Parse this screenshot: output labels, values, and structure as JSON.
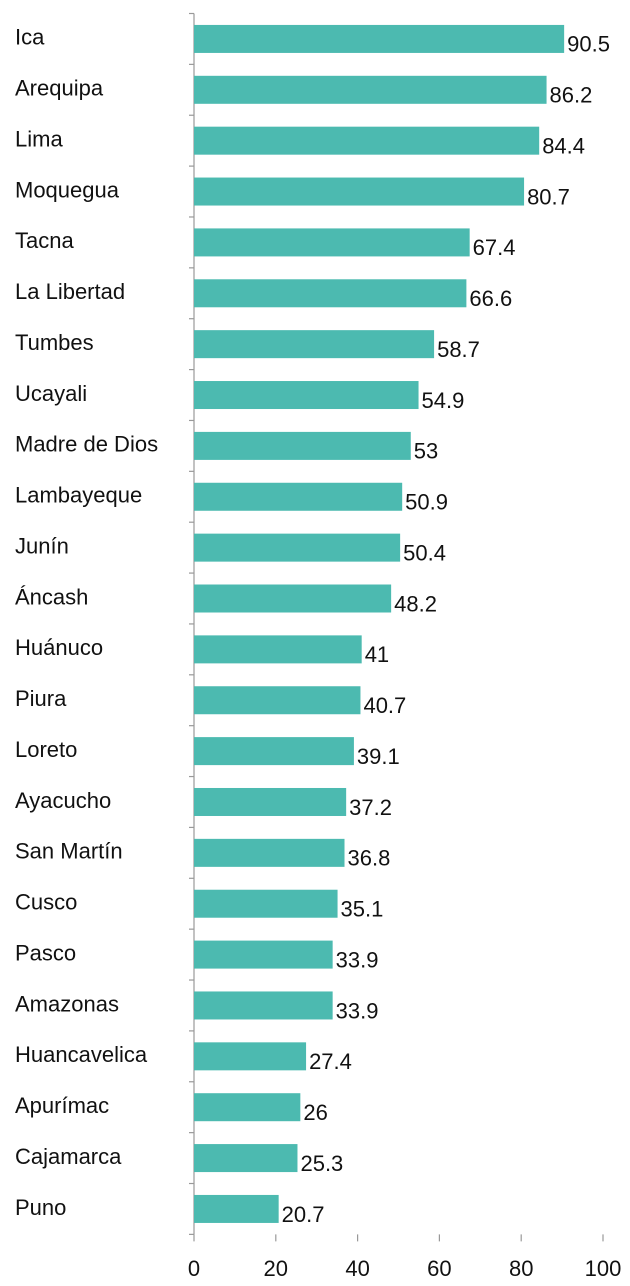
{
  "chart_data": {
    "type": "barh",
    "categories": [
      "Ica",
      "Arequipa",
      "Lima",
      "Moquegua",
      "Tacna",
      "La Libertad",
      "Tumbes",
      "Ucayali",
      "Madre de Dios",
      "Lambayeque",
      "Junín",
      "Áncash",
      "Huánuco",
      "Piura",
      "Loreto",
      "Ayacucho",
      "San Martín",
      "Cusco",
      "Pasco",
      "Amazonas",
      "Huancavelica",
      "Apurímac",
      "Cajamarca",
      "Puno"
    ],
    "values": [
      90.5,
      86.2,
      84.4,
      80.7,
      67.4,
      66.6,
      58.7,
      54.9,
      53,
      50.9,
      50.4,
      48.2,
      41,
      40.7,
      39.1,
      37.2,
      36.8,
      35.1,
      33.9,
      33.9,
      27.4,
      26,
      25.3,
      20.7
    ],
    "color": "#4cbab0",
    "xlim": [
      0,
      100
    ],
    "xticks": [
      0,
      20,
      40,
      60,
      80,
      100
    ]
  }
}
